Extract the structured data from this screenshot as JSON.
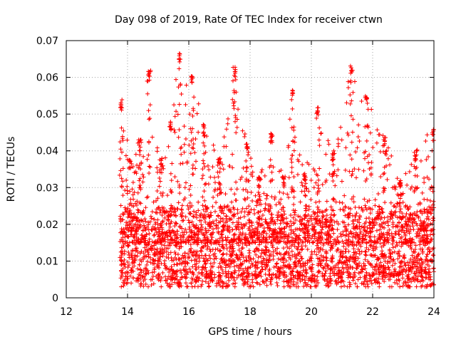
{
  "chart_data": {
    "type": "scatter",
    "title": "Day 098 of 2019, Rate Of TEC Index for receiver ctwn",
    "xlabel": "GPS time / hours",
    "ylabel": "ROTI / TECUs",
    "xlim": [
      12,
      24
    ],
    "ylim": [
      0,
      0.07
    ],
    "xticks": [
      "12",
      "14",
      "16",
      "18",
      "20",
      "22",
      "24"
    ],
    "yticks": [
      "0",
      "0.01",
      "0.02",
      "0.03",
      "0.04",
      "0.05",
      "0.06",
      "0.07"
    ],
    "grid": true,
    "marker": "+",
    "color": "#ff0000",
    "data_start_hour": 13.75,
    "data_end_hour": 24.0,
    "baseline_range": [
      0.004,
      0.024
    ],
    "envelope_upper": [
      {
        "x": 13.8,
        "y": 0.054
      },
      {
        "x": 14.1,
        "y": 0.038
      },
      {
        "x": 14.4,
        "y": 0.043
      },
      {
        "x": 14.7,
        "y": 0.062
      },
      {
        "x": 15.1,
        "y": 0.038
      },
      {
        "x": 15.4,
        "y": 0.048
      },
      {
        "x": 15.7,
        "y": 0.067
      },
      {
        "x": 16.1,
        "y": 0.061
      },
      {
        "x": 16.5,
        "y": 0.047
      },
      {
        "x": 17.0,
        "y": 0.038
      },
      {
        "x": 17.5,
        "y": 0.063
      },
      {
        "x": 17.9,
        "y": 0.042
      },
      {
        "x": 18.3,
        "y": 0.033
      },
      {
        "x": 18.7,
        "y": 0.045
      },
      {
        "x": 19.1,
        "y": 0.033
      },
      {
        "x": 19.4,
        "y": 0.058
      },
      {
        "x": 19.8,
        "y": 0.034
      },
      {
        "x": 20.2,
        "y": 0.052
      },
      {
        "x": 20.7,
        "y": 0.04
      },
      {
        "x": 21.3,
        "y": 0.064
      },
      {
        "x": 21.8,
        "y": 0.055
      },
      {
        "x": 22.4,
        "y": 0.044
      },
      {
        "x": 22.9,
        "y": 0.032
      },
      {
        "x": 23.4,
        "y": 0.04
      },
      {
        "x": 24.0,
        "y": 0.047
      }
    ]
  }
}
